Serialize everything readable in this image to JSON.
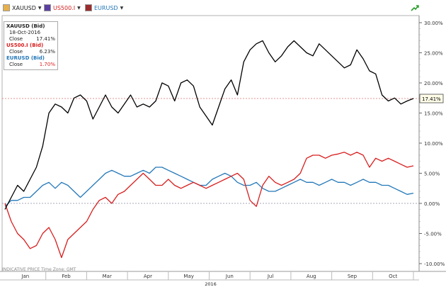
{
  "toolbar": {
    "instruments": [
      {
        "label": "XAUUSD",
        "color": "#1a1a1a"
      },
      {
        "label": "US500.I",
        "color": "#d81e1e"
      },
      {
        "label": "EURUSD",
        "color": "#2478b8"
      }
    ],
    "icon": "trend-arrow-icon"
  },
  "legend": {
    "entries": [
      {
        "name": "XAUUSD (Bid)",
        "date": "18-Oct-2016",
        "close_label": "Close",
        "close_value": "17.41%",
        "color": "#000000"
      },
      {
        "name": "US500.I (Bid)",
        "close_label": "Close",
        "close_value": "6.23%",
        "color": "#d81e1e"
      },
      {
        "name": "EURUSD (Bid)",
        "close_label": "Close",
        "close_value": "1.70%",
        "color": "#2478b8"
      }
    ]
  },
  "footnote": "INDICATIVE PRICE    Time Zone: GMT",
  "chart_data": {
    "type": "line",
    "x_labels": [
      "Jan",
      "Feb",
      "Mar",
      "Apr",
      "May",
      "Jun",
      "Jul",
      "Aug",
      "Sep",
      "Oct"
    ],
    "year_label": "2016",
    "y_ticks": [
      "30.00%",
      "25.00%",
      "20.00%",
      "15.00%",
      "10.00%",
      "5.00%",
      "0.00%",
      "-5.00%",
      "-10.00%"
    ],
    "ylim": [
      -10,
      30
    ],
    "current_value_label": "17.41%",
    "current_value": 17.41,
    "series": [
      {
        "name": "XAUUSD (Bid)",
        "color": "#000000",
        "values": [
          -1.0,
          1.0,
          3.0,
          2.0,
          4.0,
          6.0,
          9.5,
          15.0,
          16.5,
          16.0,
          15.0,
          17.5,
          18.0,
          17.0,
          14.0,
          16.0,
          18.0,
          16.0,
          15.0,
          16.5,
          18.0,
          16.0,
          16.5,
          16.0,
          17.0,
          20.0,
          19.5,
          17.0,
          20.0,
          20.5,
          19.5,
          16.0,
          14.5,
          13.0,
          16.0,
          19.0,
          20.5,
          18.0,
          23.5,
          25.5,
          26.5,
          27.0,
          25.0,
          23.5,
          24.5,
          26.0,
          27.0,
          26.0,
          25.0,
          24.5,
          26.5,
          25.5,
          24.5,
          23.5,
          22.5,
          23.0,
          25.5,
          24.0,
          22.0,
          21.5,
          18.0,
          17.0,
          17.5,
          16.5,
          17.0,
          17.41
        ]
      },
      {
        "name": "US500.I (Bid)",
        "color": "#d81e1e",
        "values": [
          0.0,
          -3.0,
          -5.0,
          -6.0,
          -7.5,
          -7.0,
          -5.0,
          -4.0,
          -6.0,
          -9.0,
          -6.0,
          -5.0,
          -4.0,
          -3.0,
          -1.0,
          0.5,
          1.0,
          0.0,
          1.5,
          2.0,
          3.0,
          4.0,
          5.0,
          4.0,
          3.0,
          3.0,
          4.0,
          3.0,
          2.5,
          3.0,
          3.5,
          3.0,
          2.5,
          3.0,
          3.5,
          4.0,
          4.5,
          5.0,
          4.0,
          0.5,
          -0.5,
          3.0,
          4.5,
          3.5,
          3.0,
          3.5,
          4.0,
          5.0,
          7.5,
          8.0,
          8.0,
          7.5,
          8.0,
          8.2,
          8.5,
          8.0,
          8.5,
          8.0,
          6.0,
          7.5,
          7.0,
          7.5,
          7.0,
          6.5,
          6.0,
          6.23
        ]
      },
      {
        "name": "EURUSD (Bid)",
        "color": "#2478b8",
        "values": [
          -0.5,
          0.5,
          0.5,
          1.0,
          1.0,
          2.0,
          3.0,
          3.5,
          2.5,
          3.5,
          3.0,
          2.0,
          1.0,
          2.0,
          3.0,
          4.0,
          5.0,
          5.5,
          5.0,
          4.5,
          4.5,
          5.0,
          5.5,
          5.0,
          6.0,
          6.0,
          5.5,
          5.0,
          4.5,
          4.0,
          3.5,
          3.0,
          3.0,
          4.0,
          4.5,
          5.0,
          4.5,
          3.5,
          3.0,
          3.0,
          3.5,
          2.5,
          2.0,
          2.0,
          2.5,
          3.0,
          3.5,
          4.0,
          3.5,
          3.5,
          3.0,
          3.5,
          4.0,
          3.5,
          3.5,
          3.0,
          3.5,
          4.0,
          3.5,
          3.5,
          3.0,
          3.0,
          2.5,
          2.0,
          1.5,
          1.7
        ]
      }
    ],
    "reference_lines": [
      0.0,
      17.41
    ]
  }
}
